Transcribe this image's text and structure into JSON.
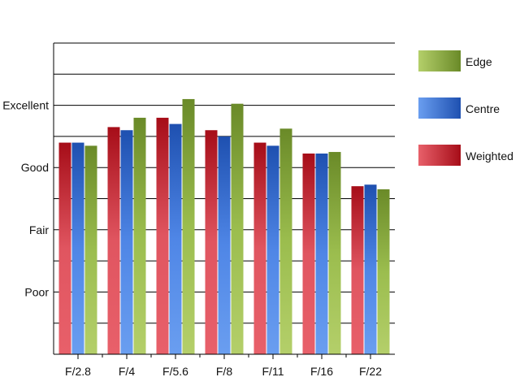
{
  "chart_data": {
    "type": "bar",
    "title": "",
    "xlabel": "",
    "ylabel": "",
    "categories": [
      "F/2.8",
      "F/4",
      "F/5.6",
      "F/8",
      "F/11",
      "F/16",
      "F/22"
    ],
    "y_tick_labels": [
      {
        "value": 2,
        "label": "Poor"
      },
      {
        "value": 4,
        "label": "Fair"
      },
      {
        "value": 6,
        "label": "Good"
      },
      {
        "value": 8,
        "label": "Excellent"
      }
    ],
    "ylim": [
      0,
      10
    ],
    "grid": true,
    "legend_position": "right",
    "series": [
      {
        "name": "Weighted",
        "color": "#c8141e",
        "values": [
          6.8,
          7.3,
          7.6,
          7.2,
          6.8,
          6.45,
          5.4
        ]
      },
      {
        "name": "Centre",
        "color": "#2a62c4",
        "values": [
          6.8,
          7.2,
          7.4,
          7.0,
          6.7,
          6.45,
          5.45
        ]
      },
      {
        "name": "Edge",
        "color": "#74962c",
        "values": [
          6.7,
          7.6,
          8.2,
          8.05,
          7.25,
          6.5,
          5.3
        ]
      }
    ],
    "legend_order": [
      "Edge",
      "Centre",
      "Weighted"
    ]
  }
}
